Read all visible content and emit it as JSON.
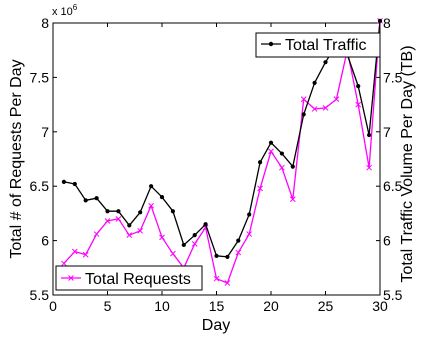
{
  "chart_data": {
    "type": "line",
    "title": "",
    "xlabel": "Day",
    "ylabel": "Total # of Requests Per Day",
    "ylabel_right": "Total Traffic Volume Per Day (TB)",
    "y_multiplier": "x 10",
    "y_multiplier_exp": "6",
    "xlim": [
      0,
      30
    ],
    "ylim": [
      5.5,
      8
    ],
    "ylim_right": [
      5.5,
      8
    ],
    "x_ticks": [
      "0",
      "5",
      "10",
      "15",
      "20",
      "25",
      "30"
    ],
    "y_ticks": [
      "5.5",
      "6",
      "6.5",
      "7",
      "7.5",
      "8"
    ],
    "y_ticks_right": [
      "5.5",
      "6",
      "6.5",
      "7",
      "7.5",
      "8"
    ],
    "grid": false,
    "colors": {
      "requests": "#ff00ff",
      "traffic": "#000000"
    },
    "series": [
      {
        "name": "Total Requests",
        "axis": "left",
        "marker": "x",
        "x": [
          1,
          2,
          3,
          4,
          5,
          6,
          7,
          8,
          9,
          10,
          11,
          12,
          13,
          14,
          15,
          16,
          17,
          18,
          19,
          20,
          21,
          22,
          23,
          24,
          25,
          26,
          27,
          28,
          29,
          30
        ],
        "y": [
          5.79,
          5.9,
          5.87,
          6.06,
          6.18,
          6.2,
          6.05,
          6.09,
          6.32,
          6.03,
          5.88,
          5.75,
          5.97,
          6.12,
          5.65,
          5.61,
          5.89,
          6.06,
          6.48,
          6.82,
          6.67,
          6.38,
          7.3,
          7.21,
          7.22,
          7.3,
          7.75,
          7.25,
          6.67,
          8.02
        ]
      },
      {
        "name": "Total Traffic",
        "axis": "right",
        "marker": "dot",
        "x": [
          1,
          2,
          3,
          4,
          5,
          6,
          7,
          8,
          9,
          10,
          11,
          12,
          13,
          14,
          15,
          16,
          17,
          18,
          19,
          20,
          21,
          22,
          23,
          24,
          25,
          26,
          27,
          28,
          29,
          30
        ],
        "y": [
          6.54,
          6.52,
          6.37,
          6.39,
          6.27,
          6.27,
          6.14,
          6.26,
          6.5,
          6.4,
          6.27,
          5.96,
          6.05,
          6.15,
          5.86,
          5.85,
          6,
          6.24,
          6.72,
          6.9,
          6.8,
          6.68,
          7.16,
          7.45,
          7.64,
          7.8,
          7.71,
          7.42,
          6.97,
          8.02
        ]
      }
    ],
    "legends": [
      {
        "label": "Total Traffic",
        "series": "traffic",
        "position": "top-right"
      },
      {
        "label": "Total Requests",
        "series": "requests",
        "position": "bottom-left"
      }
    ]
  }
}
